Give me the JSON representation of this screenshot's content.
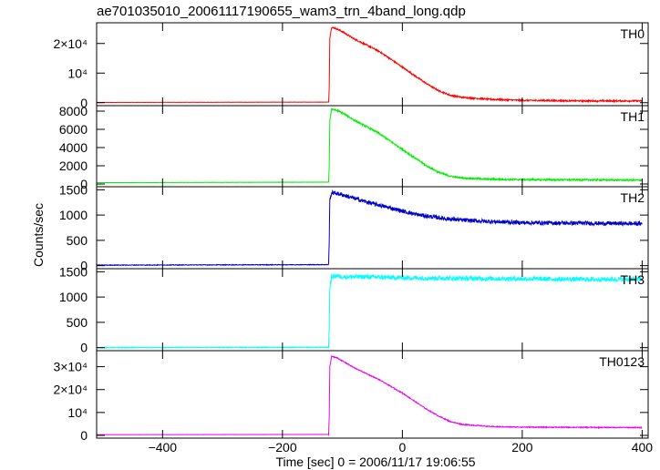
{
  "chart_data": {
    "type": "line",
    "title": "ae701035010_20061117190655_wam3_trn_4band_long.qdp",
    "xlabel": "Time [sec] 0 = 2006/11/17 19:06:55",
    "ylabel": "Counts/sec",
    "xlim": [
      -510,
      410
    ],
    "x_ticks": [
      {
        "value": -400,
        "label": "−400"
      },
      {
        "value": -200,
        "label": "−200"
      },
      {
        "value": 0,
        "label": "0"
      },
      {
        "value": 200,
        "label": "200"
      },
      {
        "value": 400,
        "label": "400"
      }
    ],
    "grid": false,
    "series": [
      {
        "name": "TH0",
        "color": "#ff0000",
        "ylim": [
          -1000,
          27000
        ],
        "y_ticks": [
          {
            "value": 0,
            "label": "0"
          },
          {
            "value": 10000,
            "label": "10⁴"
          },
          {
            "value": 20000,
            "label": "2×10⁴"
          }
        ],
        "noise": 250,
        "x": [
          -510,
          -123,
          -122,
          -121,
          -118,
          -110,
          -100,
          -80,
          -60,
          -40,
          -20,
          0,
          20,
          40,
          60,
          80,
          100,
          150,
          200,
          300,
          400
        ],
        "y": [
          100,
          200,
          5000,
          22000,
          25500,
          25000,
          24000,
          21500,
          19500,
          17500,
          14800,
          12000,
          9200,
          6500,
          4100,
          2500,
          1800,
          1100,
          800,
          600,
          600
        ]
      },
      {
        "name": "TH1",
        "color": "#00ee00",
        "ylim": [
          -300,
          8600
        ],
        "y_ticks": [
          {
            "value": 0,
            "label": "0"
          },
          {
            "value": 2000,
            "label": "2000"
          },
          {
            "value": 4000,
            "label": "4000"
          },
          {
            "value": 6000,
            "label": "6000"
          },
          {
            "value": 8000,
            "label": "8000"
          }
        ],
        "noise": 90,
        "x": [
          -510,
          -123,
          -122,
          -121,
          -118,
          -110,
          -100,
          -80,
          -60,
          -40,
          -20,
          0,
          20,
          40,
          60,
          80,
          100,
          150,
          200,
          300,
          400
        ],
        "y": [
          150,
          200,
          2000,
          7000,
          8200,
          8100,
          7800,
          7000,
          6300,
          5600,
          4700,
          3800,
          2900,
          2000,
          1300,
          850,
          650,
          520,
          480,
          450,
          420
        ]
      },
      {
        "name": "TH2",
        "color": "#0000cc",
        "ylim": [
          -60,
          1560
        ],
        "y_ticks": [
          {
            "value": 0,
            "label": "0"
          },
          {
            "value": 500,
            "label": "500"
          },
          {
            "value": 1000,
            "label": "1000"
          },
          {
            "value": 1500,
            "label": "1500"
          }
        ],
        "noise": 40,
        "x": [
          -510,
          -123,
          -122,
          -121,
          -118,
          -110,
          -100,
          -80,
          -60,
          -40,
          -20,
          0,
          20,
          40,
          60,
          80,
          100,
          150,
          200,
          300,
          400
        ],
        "y": [
          10,
          20,
          500,
          1300,
          1440,
          1430,
          1400,
          1330,
          1260,
          1200,
          1140,
          1080,
          1020,
          980,
          950,
          920,
          900,
          870,
          850,
          840,
          830
        ]
      },
      {
        "name": "TH3",
        "color": "#00ffff",
        "ylim": [
          -60,
          1560
        ],
        "y_ticks": [
          {
            "value": 0,
            "label": "0"
          },
          {
            "value": 500,
            "label": "500"
          },
          {
            "value": 1000,
            "label": "1000"
          },
          {
            "value": 1500,
            "label": "1500"
          }
        ],
        "noise": 45,
        "x": [
          -510,
          -123,
          -122,
          -121,
          -118,
          -110,
          -100,
          -60,
          0,
          100,
          200,
          300,
          400
        ],
        "y": [
          0,
          5,
          400,
          1200,
          1400,
          1420,
          1400,
          1400,
          1380,
          1370,
          1360,
          1350,
          1350
        ]
      },
      {
        "name": "TH0123",
        "color": "#ee00ee",
        "ylim": [
          -1200,
          37000
        ],
        "y_ticks": [
          {
            "value": 0,
            "label": "0"
          },
          {
            "value": 10000,
            "label": "10⁴"
          },
          {
            "value": 20000,
            "label": "2×10⁴"
          },
          {
            "value": 30000,
            "label": "3×10⁴"
          }
        ],
        "noise": 200,
        "x": [
          -510,
          -123,
          -122,
          -121,
          -118,
          -110,
          -100,
          -80,
          -60,
          -40,
          -20,
          0,
          20,
          40,
          60,
          80,
          100,
          150,
          200,
          300,
          400
        ],
        "y": [
          300,
          400,
          8000,
          30000,
          34500,
          34000,
          32500,
          29500,
          27000,
          24500,
          21500,
          18500,
          15000,
          11500,
          8500,
          6000,
          4800,
          3800,
          3600,
          3500,
          3400
        ]
      }
    ]
  }
}
